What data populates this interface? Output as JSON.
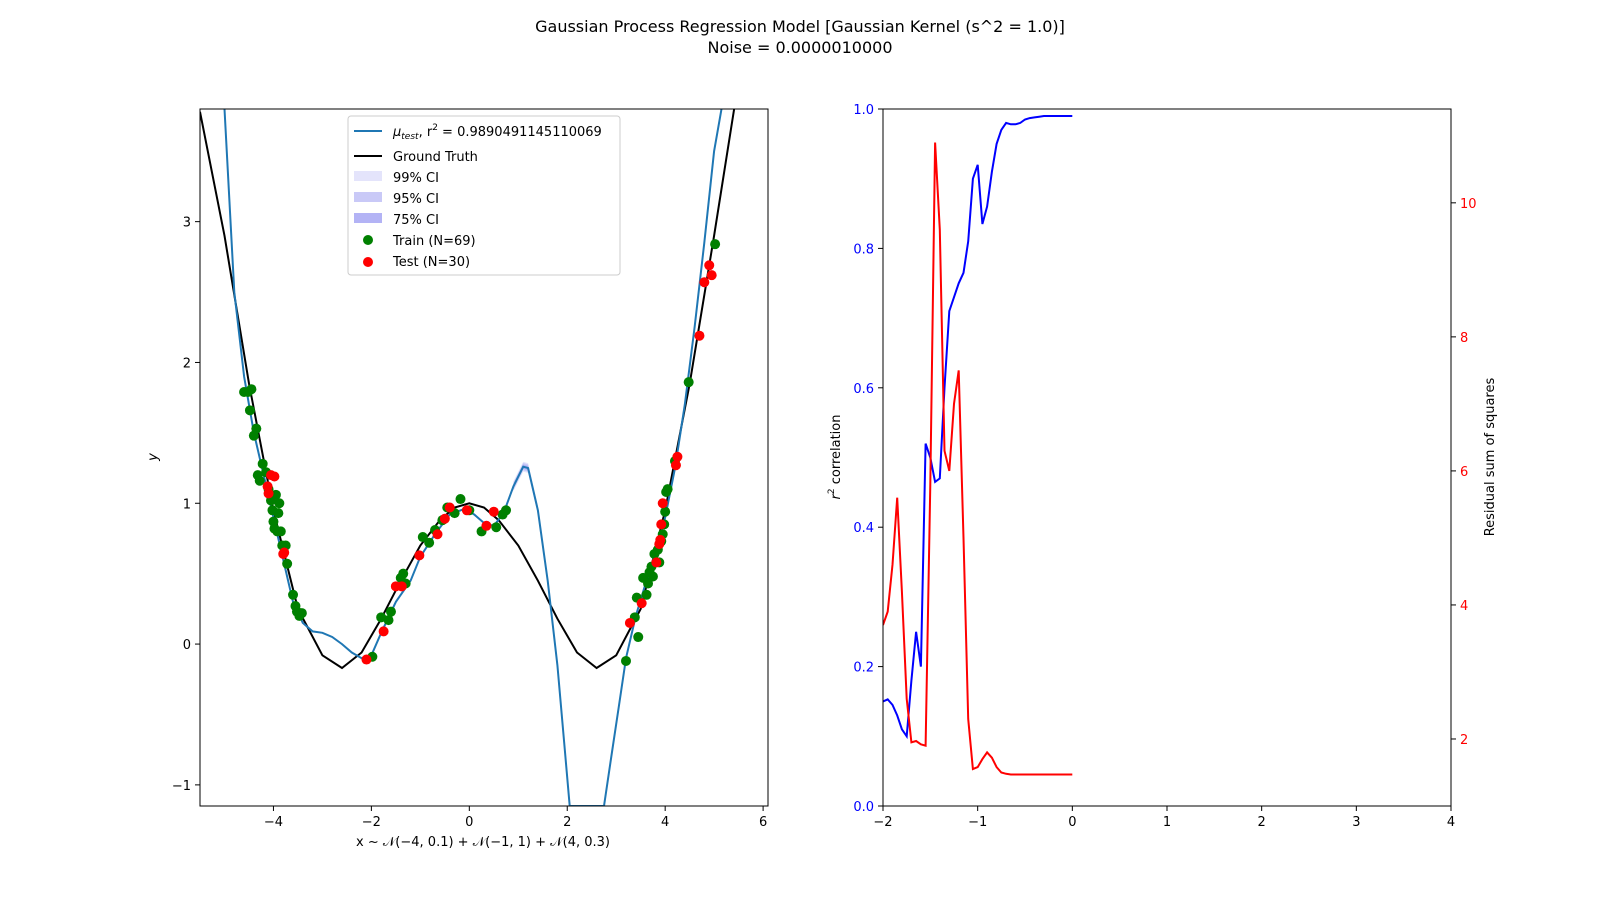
{
  "figure": {
    "title_line1": "Gaussian Process Regression Model [Gaussian Kernel (s^2 = 1.0)]",
    "title_line2": "Noise = 0.0000010000"
  },
  "colors": {
    "mean": "#1f77b4",
    "ground_truth": "#000000",
    "ci99": "#e4e4fb",
    "ci95": "#c9c9f7",
    "ci75": "#b3b3f5",
    "train": "#008000",
    "test": "#ff0000",
    "r2_line": "#0000ff",
    "rss_line": "#ff0000"
  },
  "chart_data": [
    {
      "type": "line",
      "name": "gp-fit",
      "xlabel": "x ~ 𝒩(−4, 0.1) + 𝒩(−1, 1) + 𝒩(4, 0.3)",
      "ylabel": "y",
      "xlim": [
        -5.5,
        6.1
      ],
      "ylim": [
        -1.15,
        3.8
      ],
      "xticks": [
        "−4",
        "−2",
        "0",
        "2",
        "4",
        "6"
      ],
      "xtick_values": [
        -4,
        -2,
        0,
        2,
        4,
        6
      ],
      "yticks": [
        "−1",
        "0",
        "1",
        "2",
        "3"
      ],
      "ytick_values": [
        -1,
        0,
        1,
        2,
        3
      ],
      "legend_position": "upper center",
      "legend": {
        "mean_label_prefix": "μ",
        "mean_label_sub": "test",
        "mean_label_suffix": ", r",
        "mean_label_sup": "2",
        "mean_label_value": " = 0.9890491145110069",
        "ground_truth": "Ground Truth",
        "ci99": "99% CI",
        "ci95": "95% CI",
        "ci75": "75% CI",
        "train": "Train (N=69)",
        "test": "Test (N=30)"
      },
      "mean_curve": [
        [
          -5.0,
          3.8
        ],
        [
          -4.8,
          2.5
        ],
        [
          -4.6,
          1.9
        ],
        [
          -4.4,
          1.5
        ],
        [
          -4.2,
          1.2
        ],
        [
          -4.0,
          0.9
        ],
        [
          -3.8,
          0.6
        ],
        [
          -3.6,
          0.3
        ],
        [
          -3.4,
          0.15
        ],
        [
          -3.2,
          0.09
        ],
        [
          -3.0,
          0.08
        ],
        [
          -2.8,
          0.05
        ],
        [
          -2.6,
          0.0
        ],
        [
          -2.4,
          -0.06
        ],
        [
          -2.2,
          -0.1
        ],
        [
          -2.0,
          -0.08
        ],
        [
          -1.8,
          0.08
        ],
        [
          -1.5,
          0.3
        ],
        [
          -1.2,
          0.45
        ],
        [
          -1.0,
          0.62
        ],
        [
          -0.7,
          0.78
        ],
        [
          -0.4,
          0.92
        ],
        [
          -0.1,
          0.96
        ],
        [
          0.1,
          0.92
        ],
        [
          0.3,
          0.86
        ],
        [
          0.5,
          0.84
        ],
        [
          0.7,
          0.93
        ],
        [
          0.9,
          1.12
        ],
        [
          1.1,
          1.26
        ],
        [
          1.2,
          1.25
        ],
        [
          1.4,
          0.95
        ],
        [
          1.6,
          0.45
        ],
        [
          1.8,
          -0.15
        ],
        [
          1.95,
          -0.75
        ],
        [
          2.05,
          -1.15
        ],
        [
          2.75,
          -1.15
        ],
        [
          2.9,
          -0.8
        ],
        [
          3.05,
          -0.45
        ],
        [
          3.2,
          -0.1
        ],
        [
          3.4,
          0.2
        ],
        [
          3.6,
          0.43
        ],
        [
          3.8,
          0.65
        ],
        [
          4.0,
          0.9
        ],
        [
          4.2,
          1.25
        ],
        [
          4.4,
          1.7
        ],
        [
          4.6,
          2.25
        ],
        [
          4.8,
          2.85
        ],
        [
          5.0,
          3.5
        ],
        [
          5.15,
          3.8
        ]
      ],
      "ground_truth_curve": [
        [
          -5.5,
          3.78
        ],
        [
          -5.0,
          2.9
        ],
        [
          -4.5,
          1.85
        ],
        [
          -4.0,
          0.95
        ],
        [
          -3.5,
          0.25
        ],
        [
          -3.0,
          -0.08
        ],
        [
          -2.6,
          -0.17
        ],
        [
          -2.2,
          -0.06
        ],
        [
          -1.8,
          0.18
        ],
        [
          -1.4,
          0.45
        ],
        [
          -1.0,
          0.7
        ],
        [
          -0.6,
          0.88
        ],
        [
          -0.3,
          0.97
        ],
        [
          0.0,
          1.0
        ],
        [
          0.3,
          0.97
        ],
        [
          0.6,
          0.88
        ],
        [
          1.0,
          0.7
        ],
        [
          1.4,
          0.45
        ],
        [
          1.8,
          0.18
        ],
        [
          2.2,
          -0.06
        ],
        [
          2.6,
          -0.17
        ],
        [
          3.0,
          -0.08
        ],
        [
          3.5,
          0.25
        ],
        [
          4.0,
          0.95
        ],
        [
          4.5,
          1.85
        ],
        [
          5.0,
          2.9
        ],
        [
          5.5,
          4.0
        ]
      ],
      "train_points": [
        [
          -4.52,
          1.79
        ],
        [
          -4.48,
          1.66
        ],
        [
          -4.45,
          1.81
        ],
        [
          -4.4,
          1.48
        ],
        [
          -4.35,
          1.53
        ],
        [
          -4.28,
          1.16
        ],
        [
          -4.22,
          1.28
        ],
        [
          -4.15,
          1.22
        ],
        [
          -4.1,
          1.1
        ],
        [
          -4.05,
          1.02
        ],
        [
          -4.02,
          0.95
        ],
        [
          -4.0,
          0.87
        ],
        [
          -3.98,
          0.82
        ],
        [
          -3.95,
          1.06
        ],
        [
          -3.92,
          0.8
        ],
        [
          -3.9,
          0.93
        ],
        [
          -3.88,
          1.0
        ],
        [
          -3.85,
          0.8
        ],
        [
          -3.75,
          0.7
        ],
        [
          -3.72,
          0.57
        ],
        [
          -3.6,
          0.35
        ],
        [
          -3.55,
          0.27
        ],
        [
          -3.52,
          0.23
        ],
        [
          -3.47,
          0.2
        ],
        [
          -3.42,
          0.22
        ],
        [
          -1.98,
          -0.09
        ],
        [
          -1.8,
          0.19
        ],
        [
          -1.65,
          0.17
        ],
        [
          -1.6,
          0.23
        ],
        [
          -1.35,
          0.5
        ],
        [
          -1.3,
          0.43
        ],
        [
          -0.95,
          0.76
        ],
        [
          -0.82,
          0.72
        ],
        [
          -0.7,
          0.81
        ],
        [
          -0.55,
          0.88
        ],
        [
          -0.45,
          0.97
        ],
        [
          -0.3,
          0.93
        ],
        [
          -0.18,
          1.03
        ],
        [
          0.25,
          0.8
        ],
        [
          0.55,
          0.83
        ],
        [
          0.68,
          0.92
        ],
        [
          0.75,
          0.95
        ],
        [
          3.2,
          -0.12
        ],
        [
          3.38,
          0.19
        ],
        [
          3.42,
          0.33
        ],
        [
          3.45,
          0.05
        ],
        [
          3.55,
          0.47
        ],
        [
          3.62,
          0.35
        ],
        [
          3.68,
          0.51
        ],
        [
          3.72,
          0.55
        ],
        [
          3.75,
          0.48
        ],
        [
          3.78,
          0.64
        ],
        [
          3.85,
          0.67
        ],
        [
          3.88,
          0.58
        ],
        [
          3.92,
          0.73
        ],
        [
          3.95,
          0.78
        ],
        [
          4.0,
          0.94
        ],
        [
          4.02,
          1.08
        ],
        [
          4.05,
          1.1
        ],
        [
          4.2,
          1.3
        ],
        [
          4.48,
          1.86
        ],
        [
          5.02,
          2.84
        ],
        [
          -4.6,
          1.79
        ],
        [
          -4.32,
          1.2
        ],
        [
          -3.82,
          0.7
        ],
        [
          -1.4,
          0.47
        ],
        [
          0.0,
          0.95
        ],
        [
          3.65,
          0.43
        ],
        [
          3.98,
          0.85
        ]
      ],
      "test_points": [
        [
          -4.1,
          1.07
        ],
        [
          -4.05,
          1.2
        ],
        [
          -4.12,
          1.12
        ],
        [
          -3.8,
          0.64
        ],
        [
          -3.78,
          0.65
        ],
        [
          -2.1,
          -0.11
        ],
        [
          -1.75,
          0.09
        ],
        [
          -1.5,
          0.41
        ],
        [
          -1.38,
          0.41
        ],
        [
          -1.02,
          0.63
        ],
        [
          -0.65,
          0.78
        ],
        [
          -0.5,
          0.89
        ],
        [
          -0.4,
          0.97
        ],
        [
          -0.05,
          0.95
        ],
        [
          0.35,
          0.84
        ],
        [
          0.5,
          0.94
        ],
        [
          3.28,
          0.15
        ],
        [
          3.52,
          0.29
        ],
        [
          3.82,
          0.58
        ],
        [
          3.88,
          0.71
        ],
        [
          3.9,
          0.74
        ],
        [
          3.95,
          1.0
        ],
        [
          4.22,
          1.27
        ],
        [
          4.25,
          1.33
        ],
        [
          4.7,
          2.19
        ],
        [
          4.8,
          2.57
        ],
        [
          4.9,
          2.69
        ],
        [
          4.95,
          2.62
        ],
        [
          3.92,
          0.85
        ],
        [
          -3.98,
          1.19
        ]
      ],
      "ci_band_region": [
        0.8,
        1.5
      ],
      "ci_half_widths": {
        "ci99": 0.035,
        "ci95": 0.026,
        "ci75": 0.015
      }
    },
    {
      "type": "line",
      "name": "r2-vs-rss",
      "xlabel": "",
      "ylabel_left": "r² correlation",
      "ylabel_left_prefix": "r",
      "ylabel_left_sup": "2",
      "ylabel_left_suffix": " correlation",
      "ylabel_right": "Residual sum of squares",
      "xlim": [
        -2,
        4
      ],
      "ylim_left": [
        0.0,
        1.0
      ],
      "ylim_right": [
        1.0,
        11.4
      ],
      "xticks": [
        "−2",
        "−1",
        "0",
        "1",
        "2",
        "3",
        "4"
      ],
      "xtick_values": [
        -2,
        -1,
        0,
        1,
        2,
        3,
        4
      ],
      "yticks_left": [
        "0.0",
        "0.2",
        "0.4",
        "0.6",
        "0.8",
        "1.0"
      ],
      "ytick_values_left": [
        0.0,
        0.2,
        0.4,
        0.6,
        0.8,
        1.0
      ],
      "yticks_right": [
        "2",
        "4",
        "6",
        "8",
        "10"
      ],
      "ytick_values_right": [
        2,
        4,
        6,
        8,
        10
      ],
      "series": [
        {
          "axis": "left",
          "color": "#0000ff",
          "x": [
            -2.0,
            -1.95,
            -1.9,
            -1.85,
            -1.8,
            -1.75,
            -1.7,
            -1.65,
            -1.6,
            -1.55,
            -1.5,
            -1.45,
            -1.4,
            -1.35,
            -1.3,
            -1.25,
            -1.2,
            -1.15,
            -1.1,
            -1.05,
            -1.0,
            -0.95,
            -0.9,
            -0.85,
            -0.8,
            -0.75,
            -0.7,
            -0.65,
            -0.6,
            -0.55,
            -0.5,
            -0.45,
            -0.4,
            -0.35,
            -0.3,
            -0.25,
            -0.2,
            -0.15,
            -0.1,
            -0.05,
            0.0
          ],
          "y": [
            0.15,
            0.153,
            0.145,
            0.13,
            0.11,
            0.1,
            0.18,
            0.25,
            0.2,
            0.52,
            0.5,
            0.465,
            0.47,
            0.6,
            0.71,
            0.73,
            0.75,
            0.765,
            0.81,
            0.9,
            0.92,
            0.835,
            0.86,
            0.91,
            0.95,
            0.97,
            0.98,
            0.978,
            0.978,
            0.98,
            0.985,
            0.987,
            0.988,
            0.989,
            0.99,
            0.99,
            0.99,
            0.99,
            0.99,
            0.99,
            0.99
          ]
        },
        {
          "axis": "right",
          "color": "#ff0000",
          "x": [
            -2.0,
            -1.95,
            -1.9,
            -1.85,
            -1.8,
            -1.75,
            -1.7,
            -1.65,
            -1.6,
            -1.55,
            -1.5,
            -1.45,
            -1.4,
            -1.35,
            -1.3,
            -1.25,
            -1.2,
            -1.15,
            -1.1,
            -1.05,
            -1.0,
            -0.95,
            -0.9,
            -0.85,
            -0.8,
            -0.75,
            -0.7,
            -0.65,
            -0.6,
            -0.55,
            -0.5,
            -0.45,
            -0.4,
            -0.35,
            -0.3,
            -0.25,
            -0.2,
            -0.15,
            -0.1,
            -0.05,
            0.0
          ],
          "y": [
            3.7,
            3.9,
            4.6,
            5.6,
            4.2,
            2.6,
            1.95,
            1.97,
            1.92,
            1.9,
            5.8,
            10.9,
            9.6,
            6.3,
            6.0,
            7.0,
            7.5,
            5.0,
            2.3,
            1.55,
            1.58,
            1.7,
            1.8,
            1.72,
            1.58,
            1.5,
            1.48,
            1.47,
            1.47,
            1.47,
            1.47,
            1.47,
            1.47,
            1.47,
            1.47,
            1.47,
            1.47,
            1.47,
            1.47,
            1.47,
            1.47
          ]
        }
      ]
    }
  ]
}
